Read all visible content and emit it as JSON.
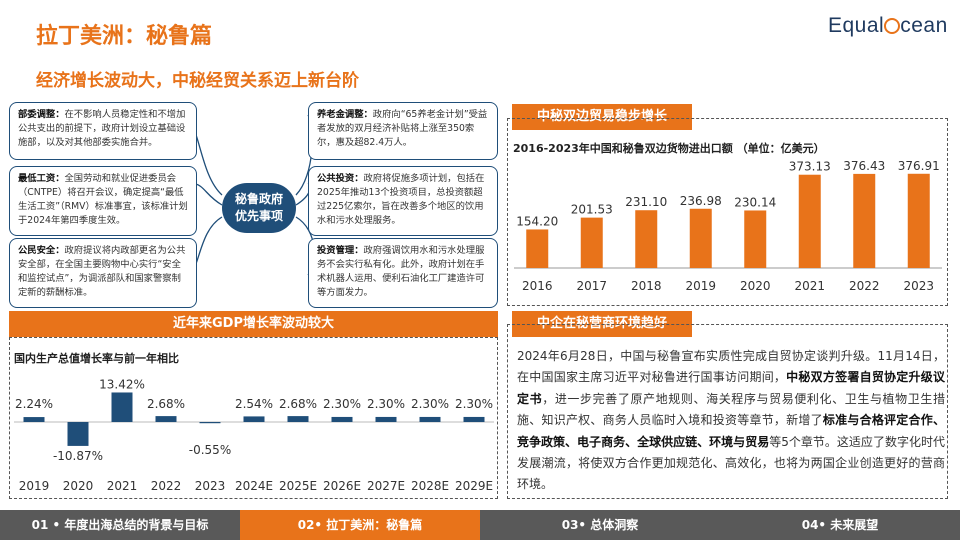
{
  "page_title": "拉丁美洲：秘鲁篇",
  "subtitle": "经济增长波动大，中秘经贸关系迈上新台阶",
  "logo_text": "EqualOcean",
  "hub_label": [
    "秘鲁政府",
    "优先事项"
  ],
  "policies": [
    {
      "title": "部委调整：",
      "text": "在不影响人员稳定性和不增加公共支出的前提下，政府计划设立基础设施部，以及对其他部委实施合并。"
    },
    {
      "title": "最低工资：",
      "text": "全国劳动和就业促进委员会（CNTPE）将召开会议，确定提高“最低生活工资”（RMV）标准事宜，该标准计划于2024年第四季度生效。"
    },
    {
      "title": "公民安全：",
      "text": "政府提议将内政部更名为公共安全部，在全国主要购物中心实行“安全和监控试点”，为调派部队和国家警察制定新的薪酬标准。"
    },
    {
      "title": "养老金调整：",
      "text": "政府向“65养老金计划”受益者发放的双月经济补贴将上涨至350索尔，惠及超82.4万人。"
    },
    {
      "title": "公共投资：",
      "text": "政府将促施多项计划，包括在2025年推动13个投资项目，总投资额超过225亿索尔，旨在改善多个地区的饮用水和污水处理服务。"
    },
    {
      "title": "投资管理：",
      "text": "政府强调饮用水和污水处理服务不会实行私有化。此外，政府计划在手术机器人运用、便利石油化工厂建造许可等方面发力。"
    }
  ],
  "trade_header": "中秘双边贸易稳步增长",
  "gdp_header": "近年来GDP增长率波动较大",
  "env_header": "中企在秘营商环境趋好",
  "env_text": {
    "p1": "2024年6月28日，中国与秘鲁宣布实质性完成自贸协定谈判升级。11月14日，在中国国家主席习近平对秘鲁进行国事访问期间，",
    "b1": "中秘双方签署自贸协定升级议定书",
    "p2": "，进一步完善了原产地规则、海关程序与贸易便利化、卫生与植物卫生措施、知识产权、商务人员临时入境和投资等章节，新增了",
    "b2": "标准与合格评定合作、竞争政策、电子商务、全球供应链、环境与贸易",
    "p3": "等5个章节。这适应了数字化时代发展潮流，将使双方合作更加规范化、高效化，也将为两国企业创造更好的营商环境。"
  },
  "footer": [
    {
      "label": "01 • 年度出海总结的背景与目标",
      "active": false
    },
    {
      "label": "02• 拉丁美洲：秘鲁篇",
      "active": true
    },
    {
      "label": "03• 总体洞察",
      "active": false
    },
    {
      "label": "04• 未来展望",
      "active": false
    }
  ],
  "chart_data": [
    {
      "type": "bar",
      "title": "2016-2023年中国和秘鲁双边货物进出口额 （单位：亿美元）",
      "categories": [
        "2016",
        "2017",
        "2018",
        "2019",
        "2020",
        "2021",
        "2022",
        "2023"
      ],
      "values": [
        154.2,
        201.53,
        231.1,
        236.98,
        230.14,
        373.13,
        376.43,
        376.91
      ],
      "labels": [
        "154.20",
        "201.53",
        "231.10",
        "236.98",
        "230.14",
        "373.13",
        "376.43",
        "376.91"
      ],
      "ylim": [
        0,
        400
      ],
      "color": "#e8731a",
      "grid": false
    },
    {
      "type": "bar",
      "title": "国内生产总值增长率与前一年相比",
      "categories": [
        "2019",
        "2020",
        "2021",
        "2022",
        "2023",
        "2024E",
        "2025E",
        "2026E",
        "2027E",
        "2028E",
        "2029E"
      ],
      "values": [
        2.24,
        -10.87,
        13.42,
        2.68,
        -0.55,
        2.54,
        2.68,
        2.3,
        2.3,
        2.3,
        2.3
      ],
      "labels": [
        "2.24%",
        "-10.87%",
        "13.42%",
        "2.68%",
        "-0.55%",
        "2.54%",
        "2.68%",
        "2.30%",
        "2.30%",
        "2.30%",
        "2.30%"
      ],
      "color": "#1f4e79",
      "grid": false
    }
  ]
}
